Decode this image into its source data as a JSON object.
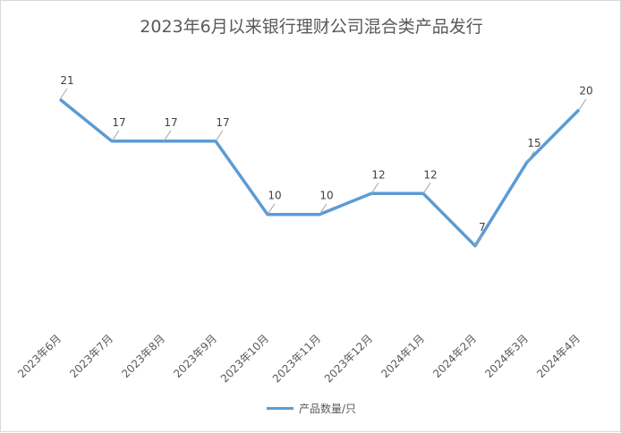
{
  "chart_data": {
    "type": "line",
    "title": "2023年6月以来银行理财公司混合类产品发行",
    "categories": [
      "2023年6月",
      "2023年7月",
      "2023年8月",
      "2023年9月",
      "2023年10月",
      "2023年11月",
      "2023年12月",
      "2024年1月",
      "2024年2月",
      "2024年3月",
      "2024年4月"
    ],
    "series": [
      {
        "name": "产品数量/只",
        "values": [
          21,
          17,
          17,
          17,
          10,
          10,
          12,
          12,
          7,
          15,
          20
        ],
        "color": "#5b9bd5"
      }
    ],
    "data_labels": true,
    "grid": false,
    "legend": "bottom"
  }
}
